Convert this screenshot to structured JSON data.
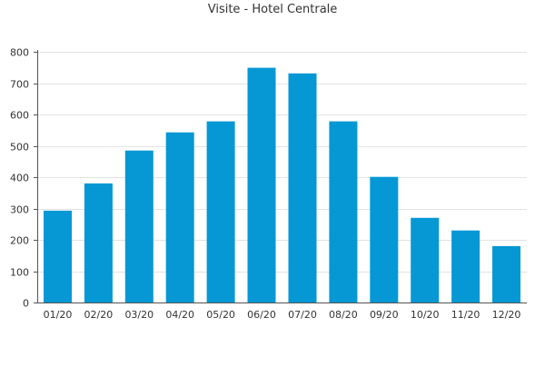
{
  "chart_data": {
    "type": "bar",
    "title": "Visite - Hotel Centrale",
    "categories": [
      "01/20",
      "02/20",
      "03/20",
      "04/20",
      "05/20",
      "06/20",
      "07/20",
      "08/20",
      "09/20",
      "10/20",
      "11/20",
      "12/20"
    ],
    "values": [
      293,
      380,
      485,
      543,
      578,
      749,
      731,
      578,
      401,
      270,
      230,
      180
    ],
    "ylim": [
      0,
      800
    ],
    "yticks": [
      0,
      100,
      200,
      300,
      400,
      500,
      600,
      700,
      800
    ],
    "grid": true,
    "legend": "none",
    "colors": {
      "bar": "#0598d4",
      "grid": "#e3e3e3",
      "axis": "#555555",
      "text": "#333333"
    }
  }
}
